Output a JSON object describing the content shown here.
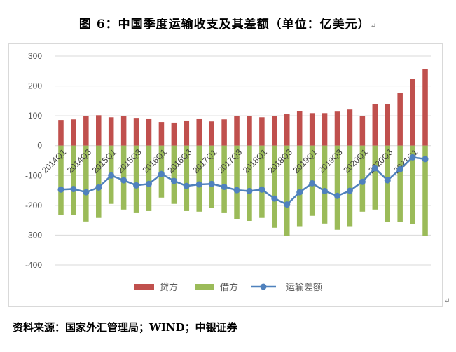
{
  "title": "图 6：中国季度运输收支及其差额（单位：亿美元）",
  "source": "资料来源：国家外汇管理局；WIND；中银证券",
  "chart_data": {
    "type": "bar",
    "title": "图 6：中国季度运输收支及其差额（单位：亿美元）",
    "categories": [
      "2014Q1",
      "2014Q2",
      "2014Q3",
      "2014Q4",
      "2015Q1",
      "2015Q2",
      "2015Q3",
      "2015Q4",
      "2016Q1",
      "2016Q2",
      "2016Q3",
      "2016Q4",
      "2017Q1",
      "2017Q2",
      "2017Q3",
      "2017Q4",
      "2018Q1",
      "2018Q2",
      "2018Q3",
      "2018Q4",
      "2019Q1",
      "2019Q2",
      "2019Q3",
      "2019Q4",
      "2020Q1",
      "2020Q2",
      "2020Q3",
      "2020Q4",
      "2021Q1",
      "2021Q2"
    ],
    "tick_labels": [
      "2014Q1",
      "2014Q3",
      "2015Q1",
      "2015Q3",
      "2016Q1",
      "2016Q3",
      "2017Q1",
      "2017Q3",
      "2018Q1",
      "2018Q3",
      "2019Q1",
      "2019Q3",
      "2020Q1",
      "2020Q3",
      "2021Q1"
    ],
    "series": [
      {
        "name": "贷方",
        "type": "bar",
        "color": "#c0504d",
        "values": [
          86,
          88,
          98,
          102,
          95,
          98,
          93,
          91,
          79,
          77,
          84,
          91,
          81,
          88,
          98,
          100,
          95,
          98,
          105,
          116,
          109,
          109,
          114,
          121,
          100,
          138,
          140,
          177,
          224,
          257
        ]
      },
      {
        "name": "借方",
        "type": "bar",
        "color": "#9bbb59",
        "values": [
          -233,
          -233,
          -254,
          -242,
          -195,
          -214,
          -226,
          -219,
          -174,
          -195,
          -219,
          -221,
          -209,
          -226,
          -247,
          -252,
          -242,
          -275,
          -302,
          -272,
          -235,
          -261,
          -282,
          -272,
          -221,
          -214,
          -256,
          -256,
          -263,
          -302
        ]
      },
      {
        "name": "运输差额",
        "type": "line",
        "color": "#4f81bd",
        "values": [
          -147,
          -145,
          -156,
          -140,
          -100,
          -116,
          -133,
          -128,
          -95,
          -118,
          -135,
          -130,
          -128,
          -138,
          -149,
          -152,
          -147,
          -177,
          -197,
          -156,
          -126,
          -152,
          -168,
          -151,
          -121,
          -76,
          -116,
          -79,
          -39,
          -45
        ]
      }
    ],
    "ylim": [
      -400,
      300
    ],
    "yticks": [
      300,
      200,
      100,
      0,
      -100,
      -200,
      -300,
      -400
    ],
    "grid": true,
    "legend": "bottom"
  }
}
